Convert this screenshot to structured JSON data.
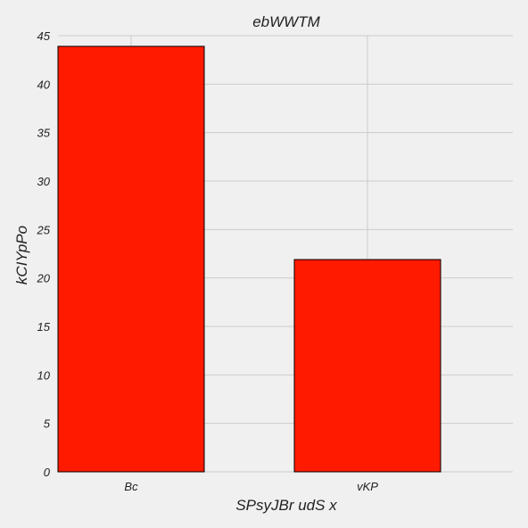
{
  "chart_data": {
    "type": "bar",
    "title": "ebWWTM",
    "xlabel": "SPsyJBr udS x",
    "ylabel": "kCIYpPo",
    "categories": [
      "Bc",
      "vKP"
    ],
    "values": [
      43.9,
      21.9
    ],
    "ylim": [
      0,
      45
    ],
    "yticks": [
      0,
      5,
      10,
      15,
      20,
      25,
      30,
      35,
      40,
      45
    ],
    "bar_color": "#ff1a00",
    "background": "#f0f0f0",
    "grid": true
  }
}
